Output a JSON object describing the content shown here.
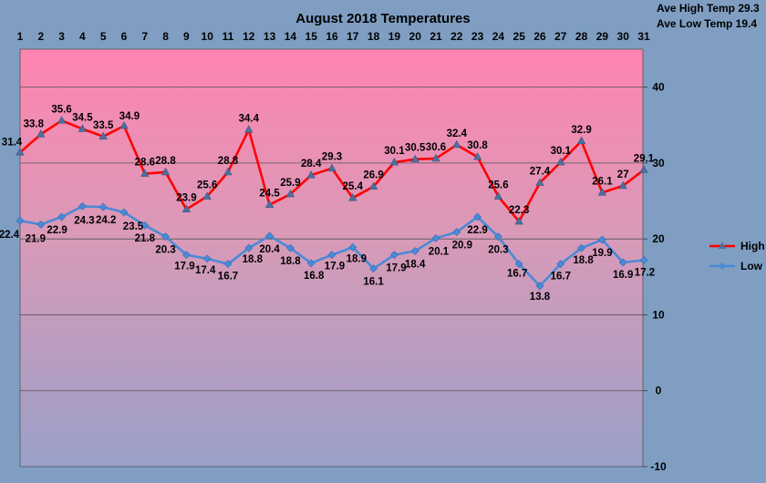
{
  "chart_data": {
    "type": "line",
    "title": "August 2018 Temperatures",
    "annotations": [
      "Ave High Temp 29.3",
      "Ave Low Temp 19.4"
    ],
    "x": [
      1,
      2,
      3,
      4,
      5,
      6,
      7,
      8,
      9,
      10,
      11,
      12,
      13,
      14,
      15,
      16,
      17,
      18,
      19,
      20,
      21,
      22,
      23,
      24,
      25,
      26,
      27,
      28,
      29,
      30,
      31
    ],
    "x_axis_position": "top",
    "y_axis_position": "right",
    "ylim": [
      -10,
      45
    ],
    "yticks": [
      -10,
      0,
      10,
      20,
      30,
      40
    ],
    "grid": "horizontal",
    "legend_position": "right",
    "colors": {
      "background": "#7f9ec2",
      "plot_top": "#ff84b0",
      "plot_bottom": "#9aa0c8",
      "high": "#ff0000",
      "low": "#4a8ad6"
    },
    "series": [
      {
        "name": "High",
        "marker": "triangle",
        "values": [
          31.4,
          33.8,
          35.6,
          34.5,
          33.5,
          34.9,
          28.6,
          28.8,
          23.9,
          25.6,
          28.8,
          34.4,
          24.5,
          25.9,
          28.4,
          29.3,
          25.4,
          26.9,
          30.1,
          30.5,
          30.6,
          32.4,
          30.8,
          25.6,
          22.3,
          27.4,
          30.1,
          32.9,
          26.1,
          27,
          29.1
        ],
        "labels": [
          "31.4",
          "33.8",
          "35.6",
          "34.5",
          "33.5",
          "34.9",
          "28.6",
          "28.8",
          "23.9",
          "25.6",
          "28.8",
          "34.4",
          "24.5",
          "25.9",
          "28.4",
          "29.3",
          "25.4",
          "26.9",
          "30.1",
          "30.5",
          "30.6",
          "32.4",
          "30.8",
          "25.6",
          "22.3",
          "27.4",
          "30.1",
          "32.9",
          "26.1",
          "27",
          "29.1"
        ]
      },
      {
        "name": "Low",
        "marker": "diamond",
        "values": [
          22.4,
          21.9,
          22.9,
          24.3,
          24.2,
          23.5,
          21.8,
          20.3,
          17.9,
          17.4,
          16.7,
          18.8,
          20.4,
          18.8,
          16.8,
          17.9,
          18.9,
          16.1,
          17.9,
          18.4,
          20.1,
          20.9,
          22.9,
          20.3,
          16.7,
          13.8,
          16.7,
          18.8,
          19.9,
          16.9,
          17.2
        ],
        "labels": [
          "22.4",
          "21.9",
          "22.9",
          "24.3",
          "24.2",
          "23.5",
          "21.8",
          "20.3",
          "17.9",
          "17.4",
          "16.7",
          "18.8",
          "20.4",
          "18.8",
          "16.8",
          "17.9",
          "18.9",
          "16.1",
          "17.9",
          "18.4",
          "20.1",
          "20.9",
          "22.9",
          "20.3",
          "16.7",
          "13.8",
          "16.7",
          "18.8",
          "19.9",
          "16.9",
          "17.2"
        ]
      }
    ]
  }
}
